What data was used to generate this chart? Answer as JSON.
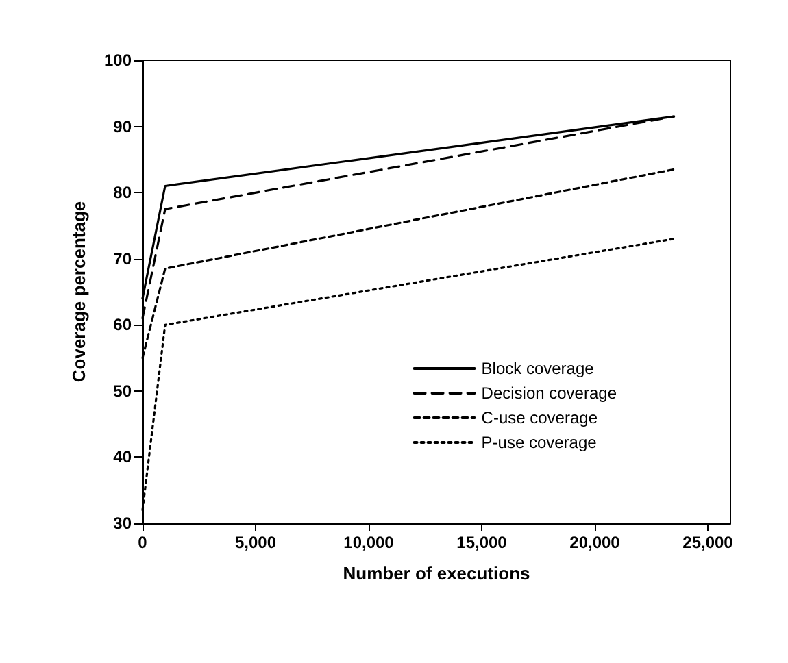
{
  "chart_data": {
    "type": "line",
    "xlabel": "Number of executions",
    "ylabel": "Coverage percentage",
    "xlim": [
      0,
      26000
    ],
    "xticks": [
      {
        "value": 0,
        "label": "0"
      },
      {
        "value": 5000,
        "label": "5,000"
      },
      {
        "value": 10000,
        "label": "10,000"
      },
      {
        "value": 15000,
        "label": "15,000"
      },
      {
        "value": 20000,
        "label": "20,000"
      },
      {
        "value": 25000,
        "label": "25,000"
      }
    ],
    "ylim": [
      30,
      100
    ],
    "yticks": [
      30,
      40,
      50,
      60,
      70,
      80,
      90,
      100
    ],
    "x": [
      0,
      1000,
      23500
    ],
    "series": [
      {
        "name": "Block coverage",
        "color": "#000000",
        "line_style": "solid",
        "values": [
          64,
          81,
          91.5
        ]
      },
      {
        "name": "Decision coverage",
        "color": "#000000",
        "line_style": "dashed",
        "values": [
          61,
          77.5,
          91.5
        ]
      },
      {
        "name": "C-use coverage",
        "color": "#000000",
        "line_style": "dashed",
        "values": [
          55,
          68.5,
          83.5
        ]
      },
      {
        "name": "P-use coverage",
        "color": "#000000",
        "line_style": "dotted",
        "values": [
          32,
          60,
          73
        ]
      }
    ],
    "grid": false,
    "legend": "bottom right",
    "marker": "none"
  }
}
